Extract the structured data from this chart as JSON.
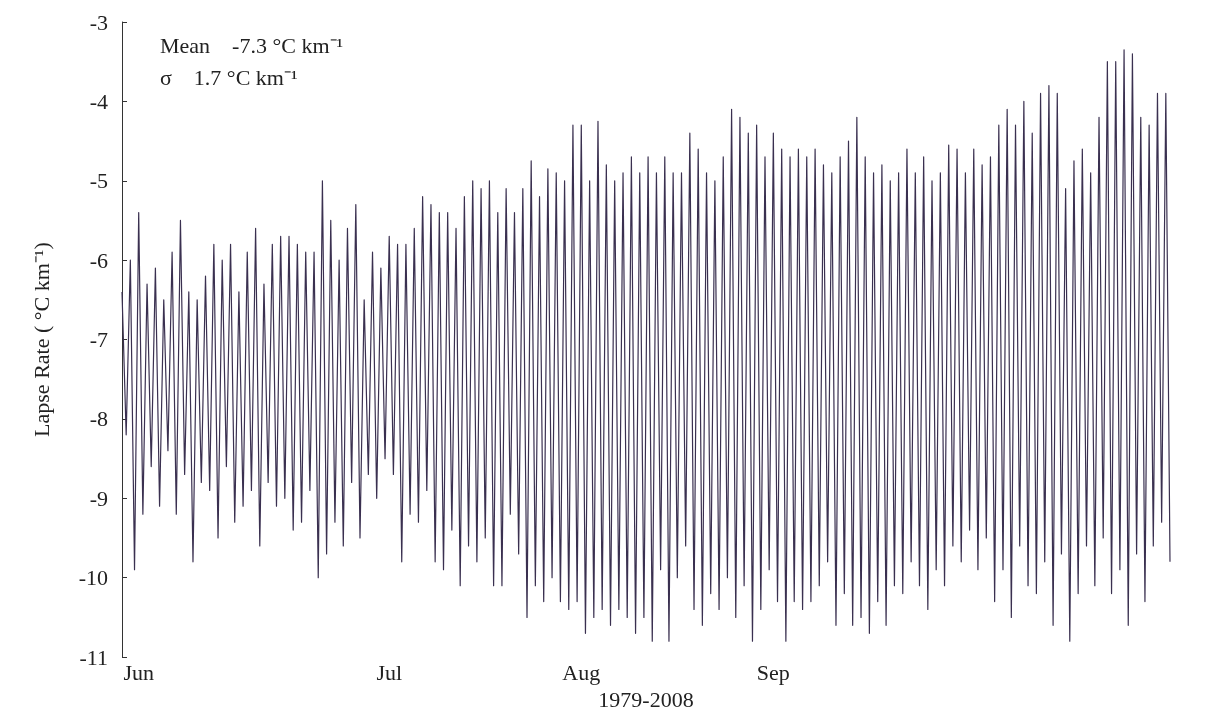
{
  "chart_data": {
    "type": "line",
    "xlabel": "1979-2008",
    "ylabel": "Lapse Rate ( °C km⁻¹)",
    "annotations": [
      "Mean    -7.3 °C km⁻¹",
      "σ    1.7 °C km⁻¹"
    ],
    "categories": [
      null,
      null,
      null,
      null,
      "Jun",
      null,
      null,
      null,
      null,
      null,
      null,
      null,
      null,
      null,
      null,
      null,
      null,
      null,
      null,
      null,
      null,
      null,
      null,
      null,
      null,
      null,
      null,
      null,
      null,
      null,
      null,
      null,
      null,
      null,
      null,
      null,
      null,
      null,
      null,
      null,
      null,
      null,
      null,
      null,
      null,
      null,
      null,
      null,
      null,
      null,
      null,
      null,
      null,
      null,
      null,
      null,
      null,
      null,
      null,
      null,
      null,
      null,
      null,
      null,
      "Jul",
      null,
      null,
      null,
      null,
      null,
      null,
      null,
      null,
      null,
      null,
      null,
      null,
      null,
      null,
      null,
      null,
      null,
      null,
      null,
      null,
      null,
      null,
      null,
      null,
      null,
      null,
      null,
      null,
      null,
      null,
      null,
      null,
      null,
      null,
      null,
      null,
      null,
      null,
      null,
      null,
      null,
      null,
      null,
      null,
      null,
      "Aug",
      null,
      null,
      null,
      null,
      null,
      null,
      null,
      null,
      null,
      null,
      null,
      null,
      null,
      null,
      null,
      null,
      null,
      null,
      null,
      null,
      null,
      null,
      null,
      null,
      null,
      null,
      null,
      null,
      null,
      null,
      null,
      null,
      null,
      null,
      null,
      null,
      null,
      null,
      null,
      null,
      null,
      null,
      null,
      null,
      null,
      "Sep",
      null,
      null,
      null,
      null,
      null,
      null,
      null,
      null,
      null,
      null,
      null,
      null,
      null,
      null,
      null,
      null,
      null,
      null,
      null,
      null,
      null,
      null,
      null,
      null,
      null,
      null,
      null,
      null,
      null,
      null,
      null,
      null,
      null,
      null,
      null,
      null,
      null,
      null,
      null,
      null,
      null,
      null,
      null,
      null,
      null,
      null,
      null,
      null,
      null,
      null,
      null,
      null,
      null,
      null,
      null,
      null,
      null,
      null,
      null,
      null,
      null,
      null,
      null,
      null,
      null,
      null,
      null,
      null,
      null,
      null,
      null,
      null,
      null,
      null,
      null,
      null,
      null,
      null,
      null,
      null,
      null,
      null,
      null,
      null,
      null,
      null,
      null,
      null,
      null,
      null,
      null,
      null,
      null,
      null,
      null
    ],
    "series": [
      {
        "color": "#3a3050",
        "values": [
          -6.4,
          -8.2,
          -6.0,
          -9.9,
          -5.4,
          -9.2,
          -6.3,
          -8.6,
          -6.1,
          -9.1,
          -6.5,
          -8.4,
          -5.9,
          -9.2,
          -5.5,
          -8.7,
          -6.4,
          -9.8,
          -6.5,
          -8.8,
          -6.2,
          -8.9,
          -5.8,
          -9.5,
          -6.0,
          -8.6,
          -5.8,
          -9.3,
          -6.4,
          -9.1,
          -5.9,
          -8.9,
          -5.6,
          -9.6,
          -6.3,
          -8.8,
          -5.8,
          -9.1,
          -5.7,
          -9.0,
          -5.7,
          -9.4,
          -5.8,
          -9.3,
          -5.9,
          -8.9,
          -5.9,
          -10.0,
          -5.0,
          -9.7,
          -5.5,
          -9.3,
          -6.0,
          -9.6,
          -5.6,
          -8.8,
          -5.3,
          -9.5,
          -6.5,
          -8.7,
          -5.9,
          -9.0,
          -6.1,
          -8.5,
          -5.7,
          -8.7,
          -5.8,
          -9.8,
          -5.8,
          -9.2,
          -5.6,
          -9.3,
          -5.2,
          -8.9,
          -5.3,
          -9.8,
          -5.4,
          -9.9,
          -5.4,
          -9.4,
          -5.6,
          -10.1,
          -5.2,
          -9.6,
          -5.0,
          -9.8,
          -5.1,
          -9.5,
          -5.0,
          -10.1,
          -5.4,
          -10.1,
          -5.1,
          -9.2,
          -5.4,
          -9.7,
          -5.1,
          -10.5,
          -4.75,
          -10.1,
          -5.2,
          -10.3,
          -4.85,
          -10.0,
          -4.9,
          -10.3,
          -5.0,
          -10.4,
          -4.3,
          -10.3,
          -4.3,
          -10.7,
          -5.0,
          -10.5,
          -4.25,
          -10.4,
          -4.8,
          -10.6,
          -5.0,
          -10.4,
          -4.9,
          -10.5,
          -4.7,
          -10.7,
          -4.9,
          -10.5,
          -4.7,
          -10.8,
          -4.9,
          -9.9,
          -4.7,
          -10.8,
          -4.9,
          -10.0,
          -4.9,
          -9.6,
          -4.4,
          -10.4,
          -4.6,
          -10.6,
          -4.9,
          -10.2,
          -5.0,
          -10.4,
          -4.7,
          -10.0,
          -4.1,
          -10.5,
          -4.2,
          -10.1,
          -4.4,
          -10.8,
          -4.3,
          -10.4,
          -4.7,
          -9.9,
          -4.4,
          -10.3,
          -4.6,
          -10.8,
          -4.7,
          -10.3,
          -4.6,
          -10.4,
          -4.7,
          -10.3,
          -4.6,
          -10.1,
          -4.8,
          -9.8,
          -4.9,
          -10.6,
          -4.7,
          -10.2,
          -4.5,
          -10.6,
          -4.2,
          -10.5,
          -4.7,
          -10.7,
          -4.9,
          -10.3,
          -4.8,
          -10.6,
          -5.0,
          -10.1,
          -4.9,
          -10.2,
          -4.6,
          -9.8,
          -4.9,
          -10.1,
          -4.7,
          -10.4,
          -5.0,
          -9.9,
          -4.9,
          -10.1,
          -4.55,
          -9.6,
          -4.6,
          -9.8,
          -4.9,
          -9.4,
          -4.6,
          -9.9,
          -4.8,
          -9.5,
          -4.7,
          -10.3,
          -4.3,
          -9.9,
          -4.1,
          -10.5,
          -4.3,
          -9.6,
          -4.0,
          -10.1,
          -4.4,
          -10.2,
          -3.9,
          -9.8,
          -3.8,
          -10.6,
          -3.9,
          -9.7,
          -5.1,
          -10.8,
          -4.75,
          -10.2,
          -4.6,
          -9.6,
          -4.9,
          -10.1,
          -4.2,
          -9.5,
          -3.5,
          -10.2,
          -3.5,
          -9.9,
          -3.35,
          -10.6,
          -3.4,
          -9.7,
          -4.2,
          -10.3,
          -4.3,
          -9.6,
          -3.9,
          -9.3,
          -3.9,
          -9.8
        ]
      }
    ],
    "ylim": [
      -11,
      -3
    ],
    "yticks": [
      -11,
      -10,
      -9,
      -8,
      -7,
      -6,
      -5,
      -4,
      -3
    ],
    "grid": false,
    "legend": false,
    "marker": "none",
    "line_style": "solid"
  }
}
